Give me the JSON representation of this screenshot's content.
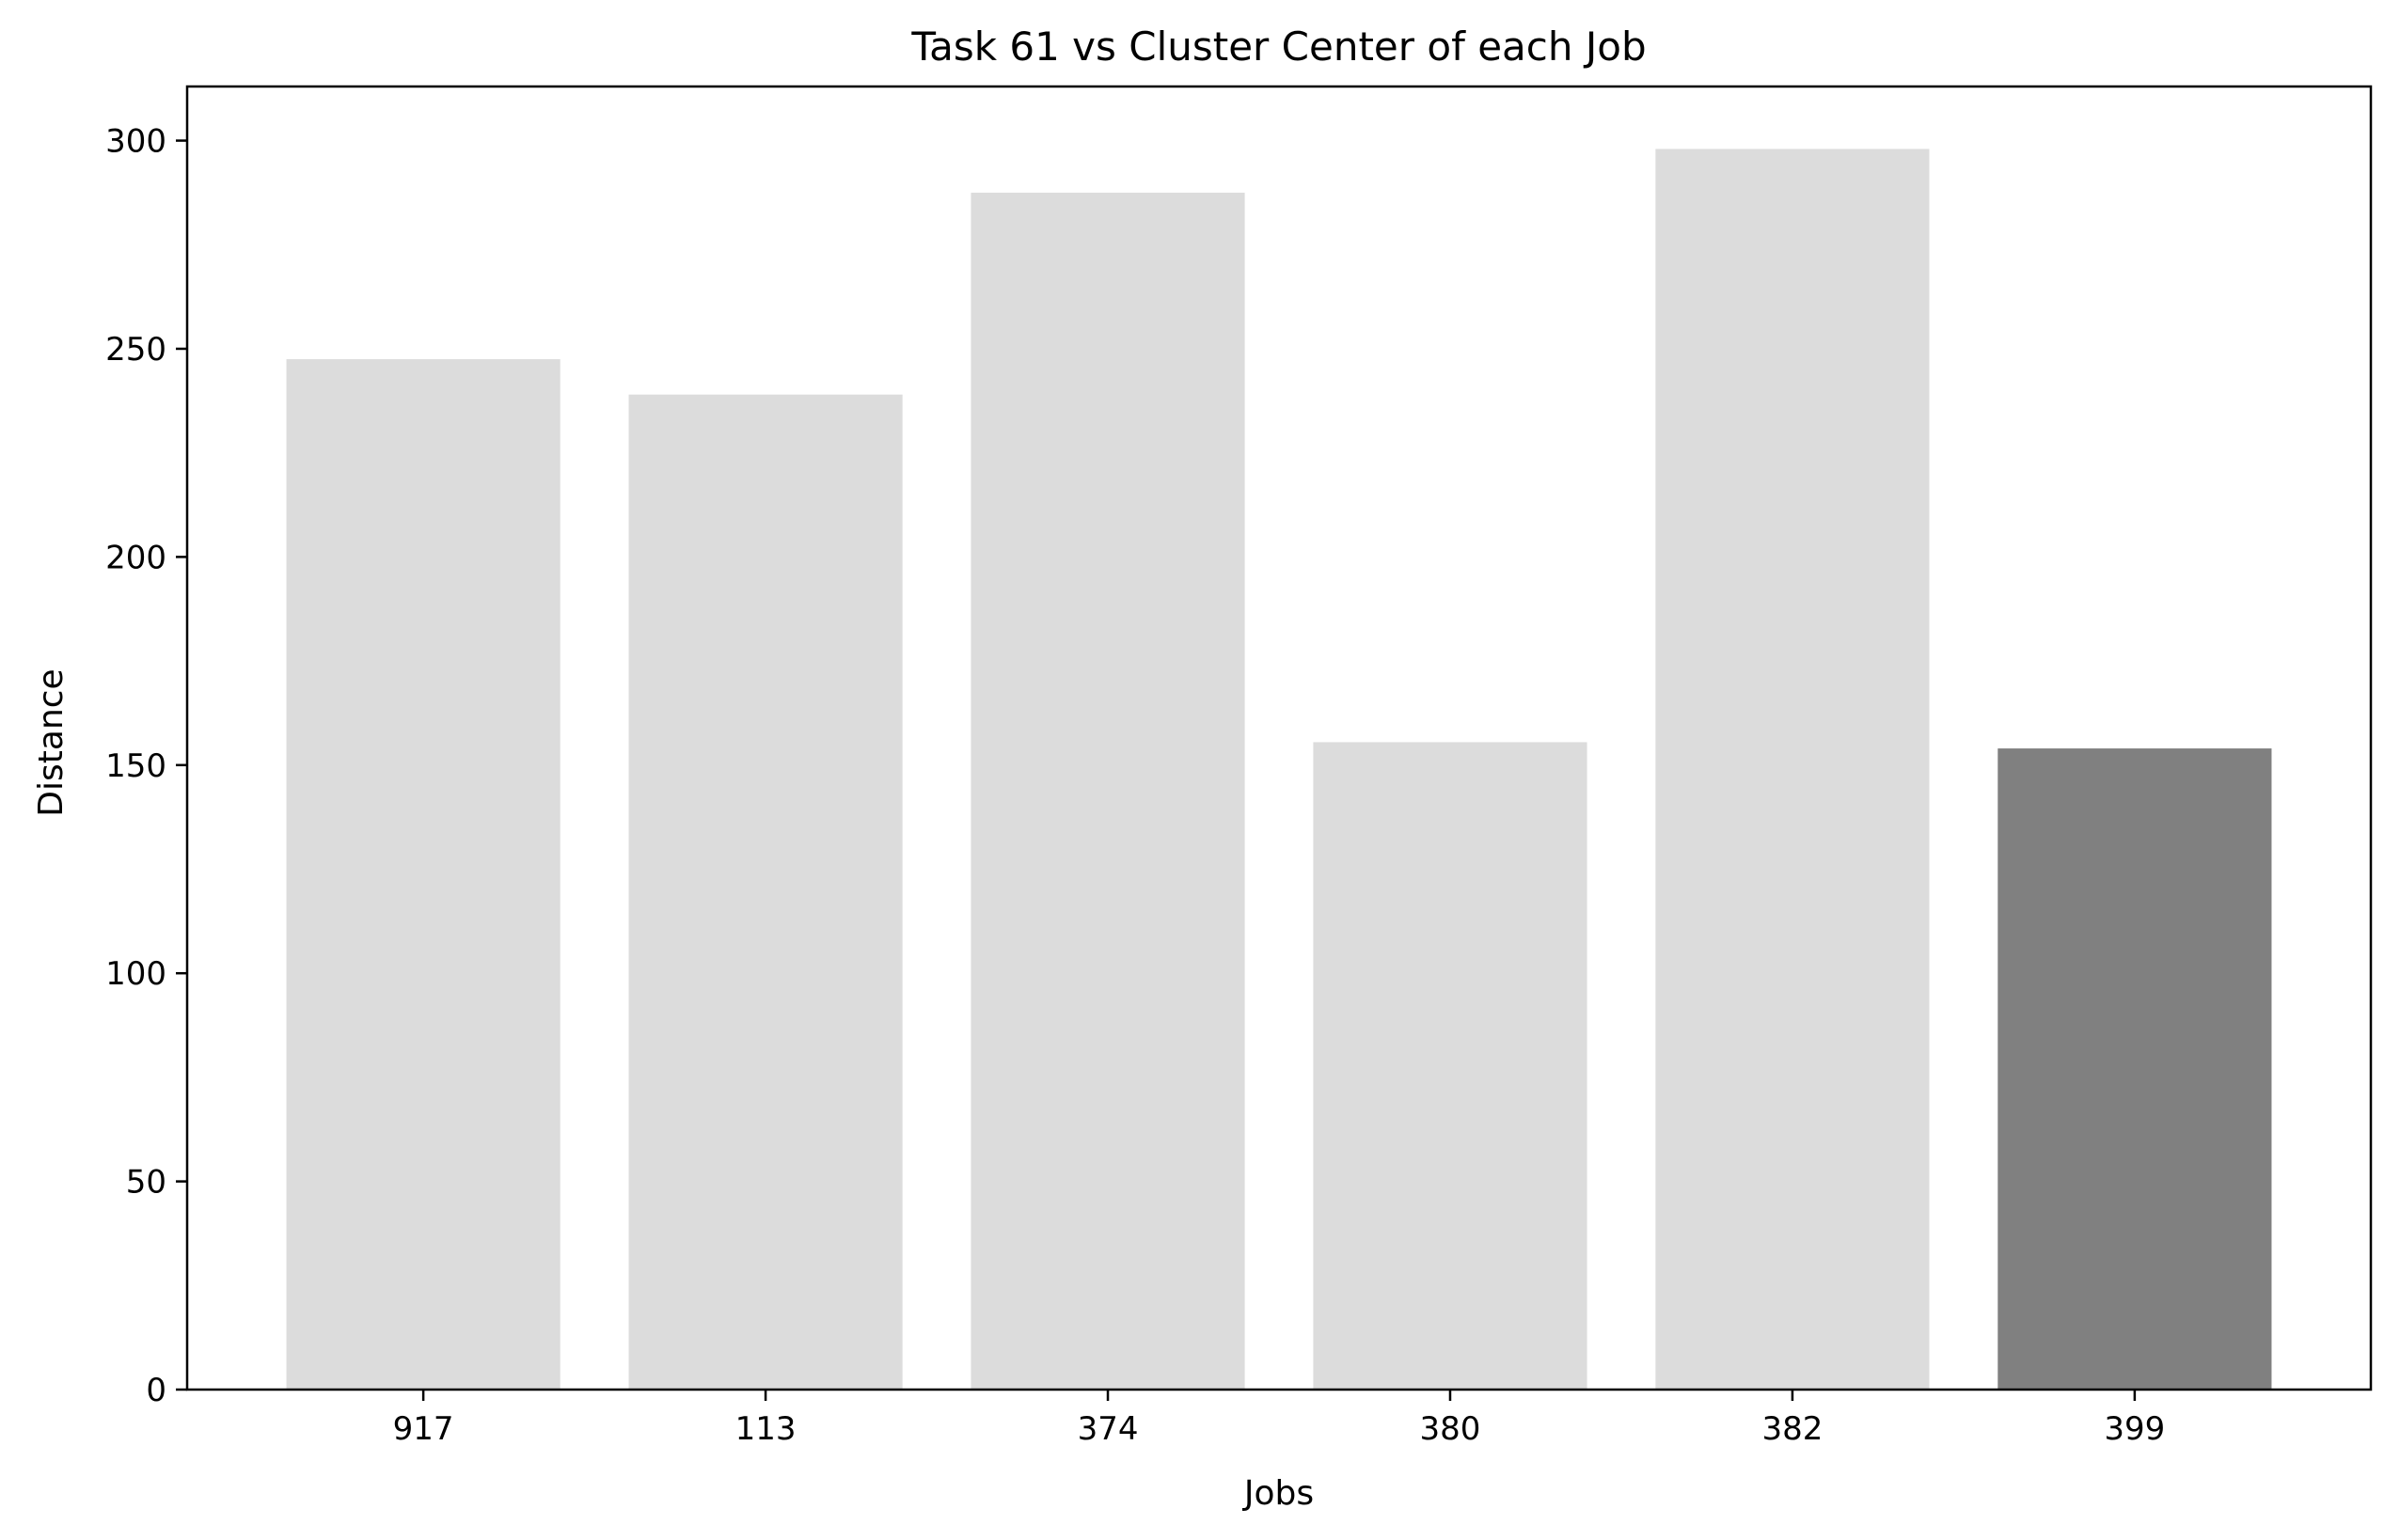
{
  "chart_data": {
    "type": "bar",
    "title": "Task 61 vs Cluster Center of each Job",
    "xlabel": "Jobs",
    "ylabel": "Distance",
    "categories": [
      "917",
      "113",
      "374",
      "380",
      "382",
      "399"
    ],
    "values": [
      247.5,
      239.0,
      287.5,
      155.5,
      298.0,
      154.0
    ],
    "colors": [
      "#dcdcdc",
      "#dcdcdc",
      "#dcdcdc",
      "#dcdcdc",
      "#dcdcdc",
      "#808080"
    ],
    "ylim": [
      0,
      313
    ],
    "yticks": [
      0,
      50,
      100,
      150,
      200,
      250,
      300
    ],
    "grid": false
  }
}
